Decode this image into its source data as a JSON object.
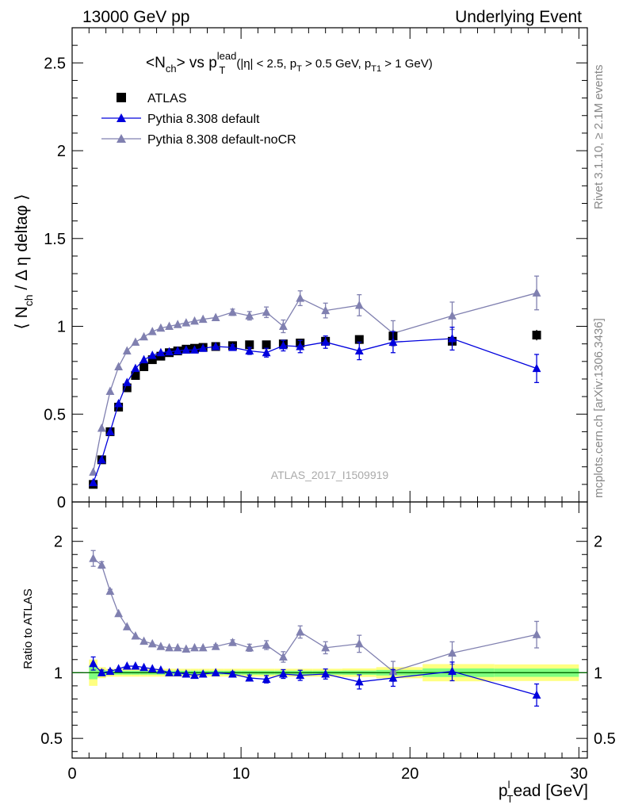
{
  "header": {
    "left": "13000 GeV pp",
    "right": "Underlying Event"
  },
  "plot_title": {
    "main": "<N",
    "main_sub": "ch",
    "main_mid": "> vs p",
    "main_sup": "lead",
    "main_sub2": "T",
    "cuts_a": "(|η| < 2.5, p",
    "cuts_sub1": "T",
    "cuts_b": " > 0.5 GeV, p",
    "cuts_sub2": "T1",
    "cuts_c": " > 1 GeV)"
  },
  "side_labels": {
    "rivet": "Rivet 3.1.10, ≥ 2.1M events",
    "mcplots": "mcplots.cern.ch [arXiv:1306.3436]"
  },
  "analysis_label": "ATLAS_2017_I1509919",
  "colors": {
    "atlas": "#000000",
    "default": "#0000dd",
    "nocr": "#8080b0",
    "band_outer": "#ffff80",
    "band_inner": "#80ff80",
    "ref_line": "#006600"
  },
  "chart_data": [
    {
      "type": "scatter",
      "panel": "main",
      "ylabel": "⟨ N_ch / Δη deltaφ ⟩",
      "xlim": [
        0,
        30.5
      ],
      "ylim": [
        0,
        2.7
      ],
      "yticks": [
        0.5,
        1,
        1.5,
        2,
        2.5
      ],
      "ytick_labels": [
        "0.5",
        "1",
        "1.5",
        "2",
        "2.5"
      ],
      "legend_position": "top-left",
      "x": [
        1.25,
        1.75,
        2.25,
        2.75,
        3.25,
        3.75,
        4.25,
        4.75,
        5.25,
        5.75,
        6.25,
        6.75,
        7.25,
        7.75,
        8.5,
        9.5,
        10.5,
        11.5,
        12.5,
        13.5,
        15.0,
        17.0,
        19.0,
        22.5,
        27.5
      ],
      "series": [
        {
          "name": "ATLAS",
          "marker": "square",
          "values": [
            0.1,
            0.24,
            0.4,
            0.54,
            0.65,
            0.72,
            0.77,
            0.81,
            0.83,
            0.85,
            0.86,
            0.87,
            0.875,
            0.88,
            0.885,
            0.89,
            0.895,
            0.895,
            0.9,
            0.905,
            0.915,
            0.925,
            0.945,
            0.915,
            0.95
          ],
          "errors": [
            0.005,
            0.005,
            0.005,
            0.005,
            0.005,
            0.005,
            0.005,
            0.005,
            0.005,
            0.005,
            0.005,
            0.005,
            0.005,
            0.005,
            0.005,
            0.005,
            0.01,
            0.01,
            0.01,
            0.01,
            0.012,
            0.015,
            0.02,
            0.03,
            0.03
          ]
        },
        {
          "name": "Pythia 8.308 default",
          "marker": "triangle",
          "values": [
            0.11,
            0.24,
            0.4,
            0.56,
            0.68,
            0.76,
            0.81,
            0.835,
            0.85,
            0.855,
            0.86,
            0.865,
            0.865,
            0.875,
            0.885,
            0.88,
            0.86,
            0.85,
            0.89,
            0.885,
            0.91,
            0.86,
            0.91,
            0.93,
            0.76
          ],
          "errors": [
            0.005,
            0.005,
            0.005,
            0.005,
            0.005,
            0.005,
            0.005,
            0.005,
            0.005,
            0.005,
            0.005,
            0.006,
            0.007,
            0.008,
            0.01,
            0.015,
            0.02,
            0.025,
            0.03,
            0.035,
            0.035,
            0.05,
            0.06,
            0.065,
            0.08
          ]
        },
        {
          "name": "Pythia 8.308 default-noCR",
          "marker": "triangle",
          "values": [
            0.17,
            0.42,
            0.63,
            0.77,
            0.86,
            0.91,
            0.94,
            0.97,
            0.99,
            1.0,
            1.01,
            1.02,
            1.03,
            1.04,
            1.05,
            1.08,
            1.06,
            1.08,
            1.0,
            1.16,
            1.09,
            1.12,
            0.96,
            1.06,
            1.19
          ]
        }
      ]
    },
    {
      "type": "scatter",
      "panel": "ratio",
      "ylabel": "Ratio to ATLAS",
      "xlabel": "p",
      "xlabel_sub": "T",
      "xlabel_sup": "l",
      "xlabel_rest": "ead [GeV]",
      "xlim": [
        0,
        30.5
      ],
      "xticks": [
        0,
        10,
        20,
        30
      ],
      "xtick_labels": [
        "0",
        "10",
        "20",
        "30"
      ],
      "ylim": [
        0.35,
        2.3
      ],
      "yticks": [
        0.5,
        1,
        2
      ],
      "ytick_labels": [
        "0.5",
        "1",
        "2"
      ],
      "series": [
        {
          "name": "Pythia 8.308 default",
          "values": [
            1.07,
            1.0,
            1.01,
            1.03,
            1.05,
            1.05,
            1.04,
            1.03,
            1.02,
            1.0,
            1.0,
            0.99,
            0.98,
            0.99,
            1.0,
            0.99,
            0.96,
            0.95,
            0.99,
            0.98,
            0.99,
            0.93,
            0.96,
            1.01,
            0.83
          ]
        },
        {
          "name": "Pythia 8.308 default-noCR",
          "values": [
            1.87,
            1.82,
            1.62,
            1.45,
            1.35,
            1.28,
            1.24,
            1.22,
            1.2,
            1.19,
            1.19,
            1.18,
            1.19,
            1.19,
            1.2,
            1.23,
            1.19,
            1.21,
            1.12,
            1.31,
            1.19,
            1.22,
            1.01,
            1.15,
            1.29
          ]
        }
      ]
    }
  ]
}
